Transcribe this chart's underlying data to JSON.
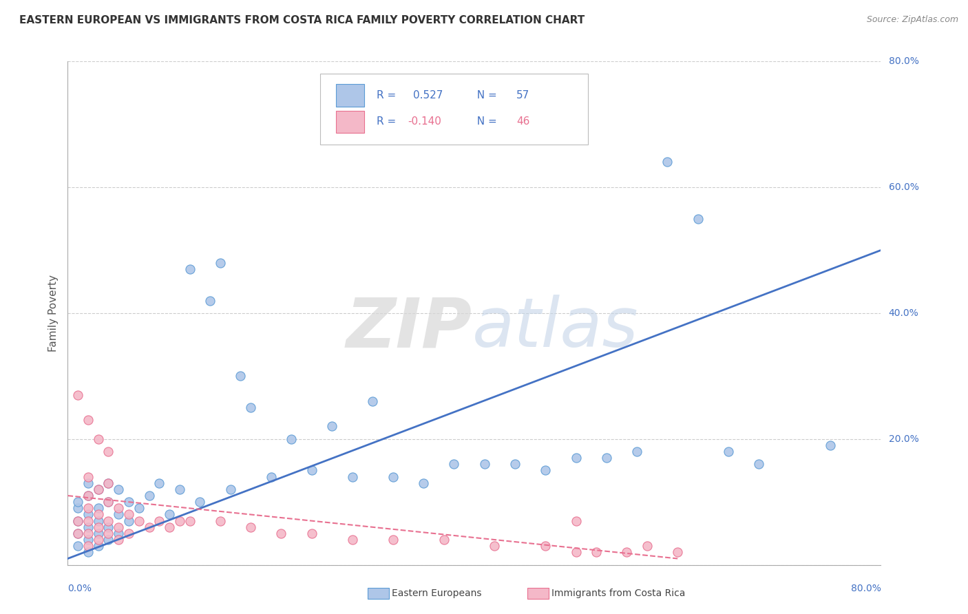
{
  "title": "EASTERN EUROPEAN VS IMMIGRANTS FROM COSTA RICA FAMILY POVERTY CORRELATION CHART",
  "source": "Source: ZipAtlas.com",
  "ylabel": "Family Poverty",
  "r1": 0.527,
  "n1": 57,
  "r2": -0.14,
  "n2": 46,
  "color_blue_fill": "#aec6e8",
  "color_blue_edge": "#5b9bd5",
  "color_pink_fill": "#f4b8c8",
  "color_pink_edge": "#e87090",
  "color_blue_line": "#4472c4",
  "color_pink_line": "#e87090",
  "color_blue_text": "#4472c4",
  "color_pink_text": "#e87090",
  "xmin": 0.0,
  "xmax": 0.8,
  "ymin": 0.0,
  "ymax": 0.8,
  "yticks": [
    0.0,
    0.2,
    0.4,
    0.6,
    0.8
  ],
  "ytick_labels": [
    "",
    "20.0%",
    "40.0%",
    "60.0%",
    "80.0%"
  ],
  "blue_scatter_x": [
    0.01,
    0.01,
    0.01,
    0.01,
    0.01,
    0.02,
    0.02,
    0.02,
    0.02,
    0.02,
    0.02,
    0.03,
    0.03,
    0.03,
    0.03,
    0.03,
    0.04,
    0.04,
    0.04,
    0.04,
    0.05,
    0.05,
    0.05,
    0.06,
    0.06,
    0.07,
    0.08,
    0.09,
    0.1,
    0.11,
    0.12,
    0.13,
    0.14,
    0.15,
    0.16,
    0.17,
    0.18,
    0.2,
    0.22,
    0.24,
    0.26,
    0.28,
    0.3,
    0.32,
    0.35,
    0.38,
    0.41,
    0.44,
    0.47,
    0.5,
    0.53,
    0.56,
    0.59,
    0.62,
    0.65,
    0.68,
    0.75
  ],
  "blue_scatter_y": [
    0.03,
    0.05,
    0.07,
    0.09,
    0.1,
    0.02,
    0.04,
    0.06,
    0.08,
    0.11,
    0.13,
    0.03,
    0.05,
    0.07,
    0.09,
    0.12,
    0.04,
    0.06,
    0.1,
    0.13,
    0.05,
    0.08,
    0.12,
    0.07,
    0.1,
    0.09,
    0.11,
    0.13,
    0.08,
    0.12,
    0.47,
    0.1,
    0.42,
    0.48,
    0.12,
    0.3,
    0.25,
    0.14,
    0.2,
    0.15,
    0.22,
    0.14,
    0.26,
    0.14,
    0.13,
    0.16,
    0.16,
    0.16,
    0.15,
    0.17,
    0.17,
    0.18,
    0.64,
    0.55,
    0.18,
    0.16,
    0.19
  ],
  "pink_scatter_x": [
    0.01,
    0.01,
    0.01,
    0.02,
    0.02,
    0.02,
    0.02,
    0.02,
    0.02,
    0.02,
    0.03,
    0.03,
    0.03,
    0.03,
    0.03,
    0.04,
    0.04,
    0.04,
    0.04,
    0.04,
    0.05,
    0.05,
    0.05,
    0.06,
    0.06,
    0.07,
    0.08,
    0.09,
    0.1,
    0.11,
    0.12,
    0.15,
    0.18,
    0.21,
    0.24,
    0.28,
    0.32,
    0.37,
    0.42,
    0.47,
    0.5,
    0.5,
    0.52,
    0.55,
    0.57,
    0.6
  ],
  "pink_scatter_y": [
    0.05,
    0.07,
    0.27,
    0.03,
    0.05,
    0.07,
    0.09,
    0.11,
    0.14,
    0.23,
    0.04,
    0.06,
    0.08,
    0.12,
    0.2,
    0.05,
    0.07,
    0.1,
    0.13,
    0.18,
    0.04,
    0.06,
    0.09,
    0.05,
    0.08,
    0.07,
    0.06,
    0.07,
    0.06,
    0.07,
    0.07,
    0.07,
    0.06,
    0.05,
    0.05,
    0.04,
    0.04,
    0.04,
    0.03,
    0.03,
    0.02,
    0.07,
    0.02,
    0.02,
    0.03,
    0.02
  ],
  "blue_line_x0": 0.0,
  "blue_line_x1": 0.8,
  "blue_line_y0": 0.01,
  "blue_line_y1": 0.5,
  "pink_line_x0": 0.0,
  "pink_line_x1": 0.6,
  "pink_line_y0": 0.11,
  "pink_line_y1": 0.01,
  "legend_label1": "Eastern Europeans",
  "legend_label2": "Immigrants from Costa Rica",
  "watermark_zip": "ZIP",
  "watermark_atlas": "atlas"
}
